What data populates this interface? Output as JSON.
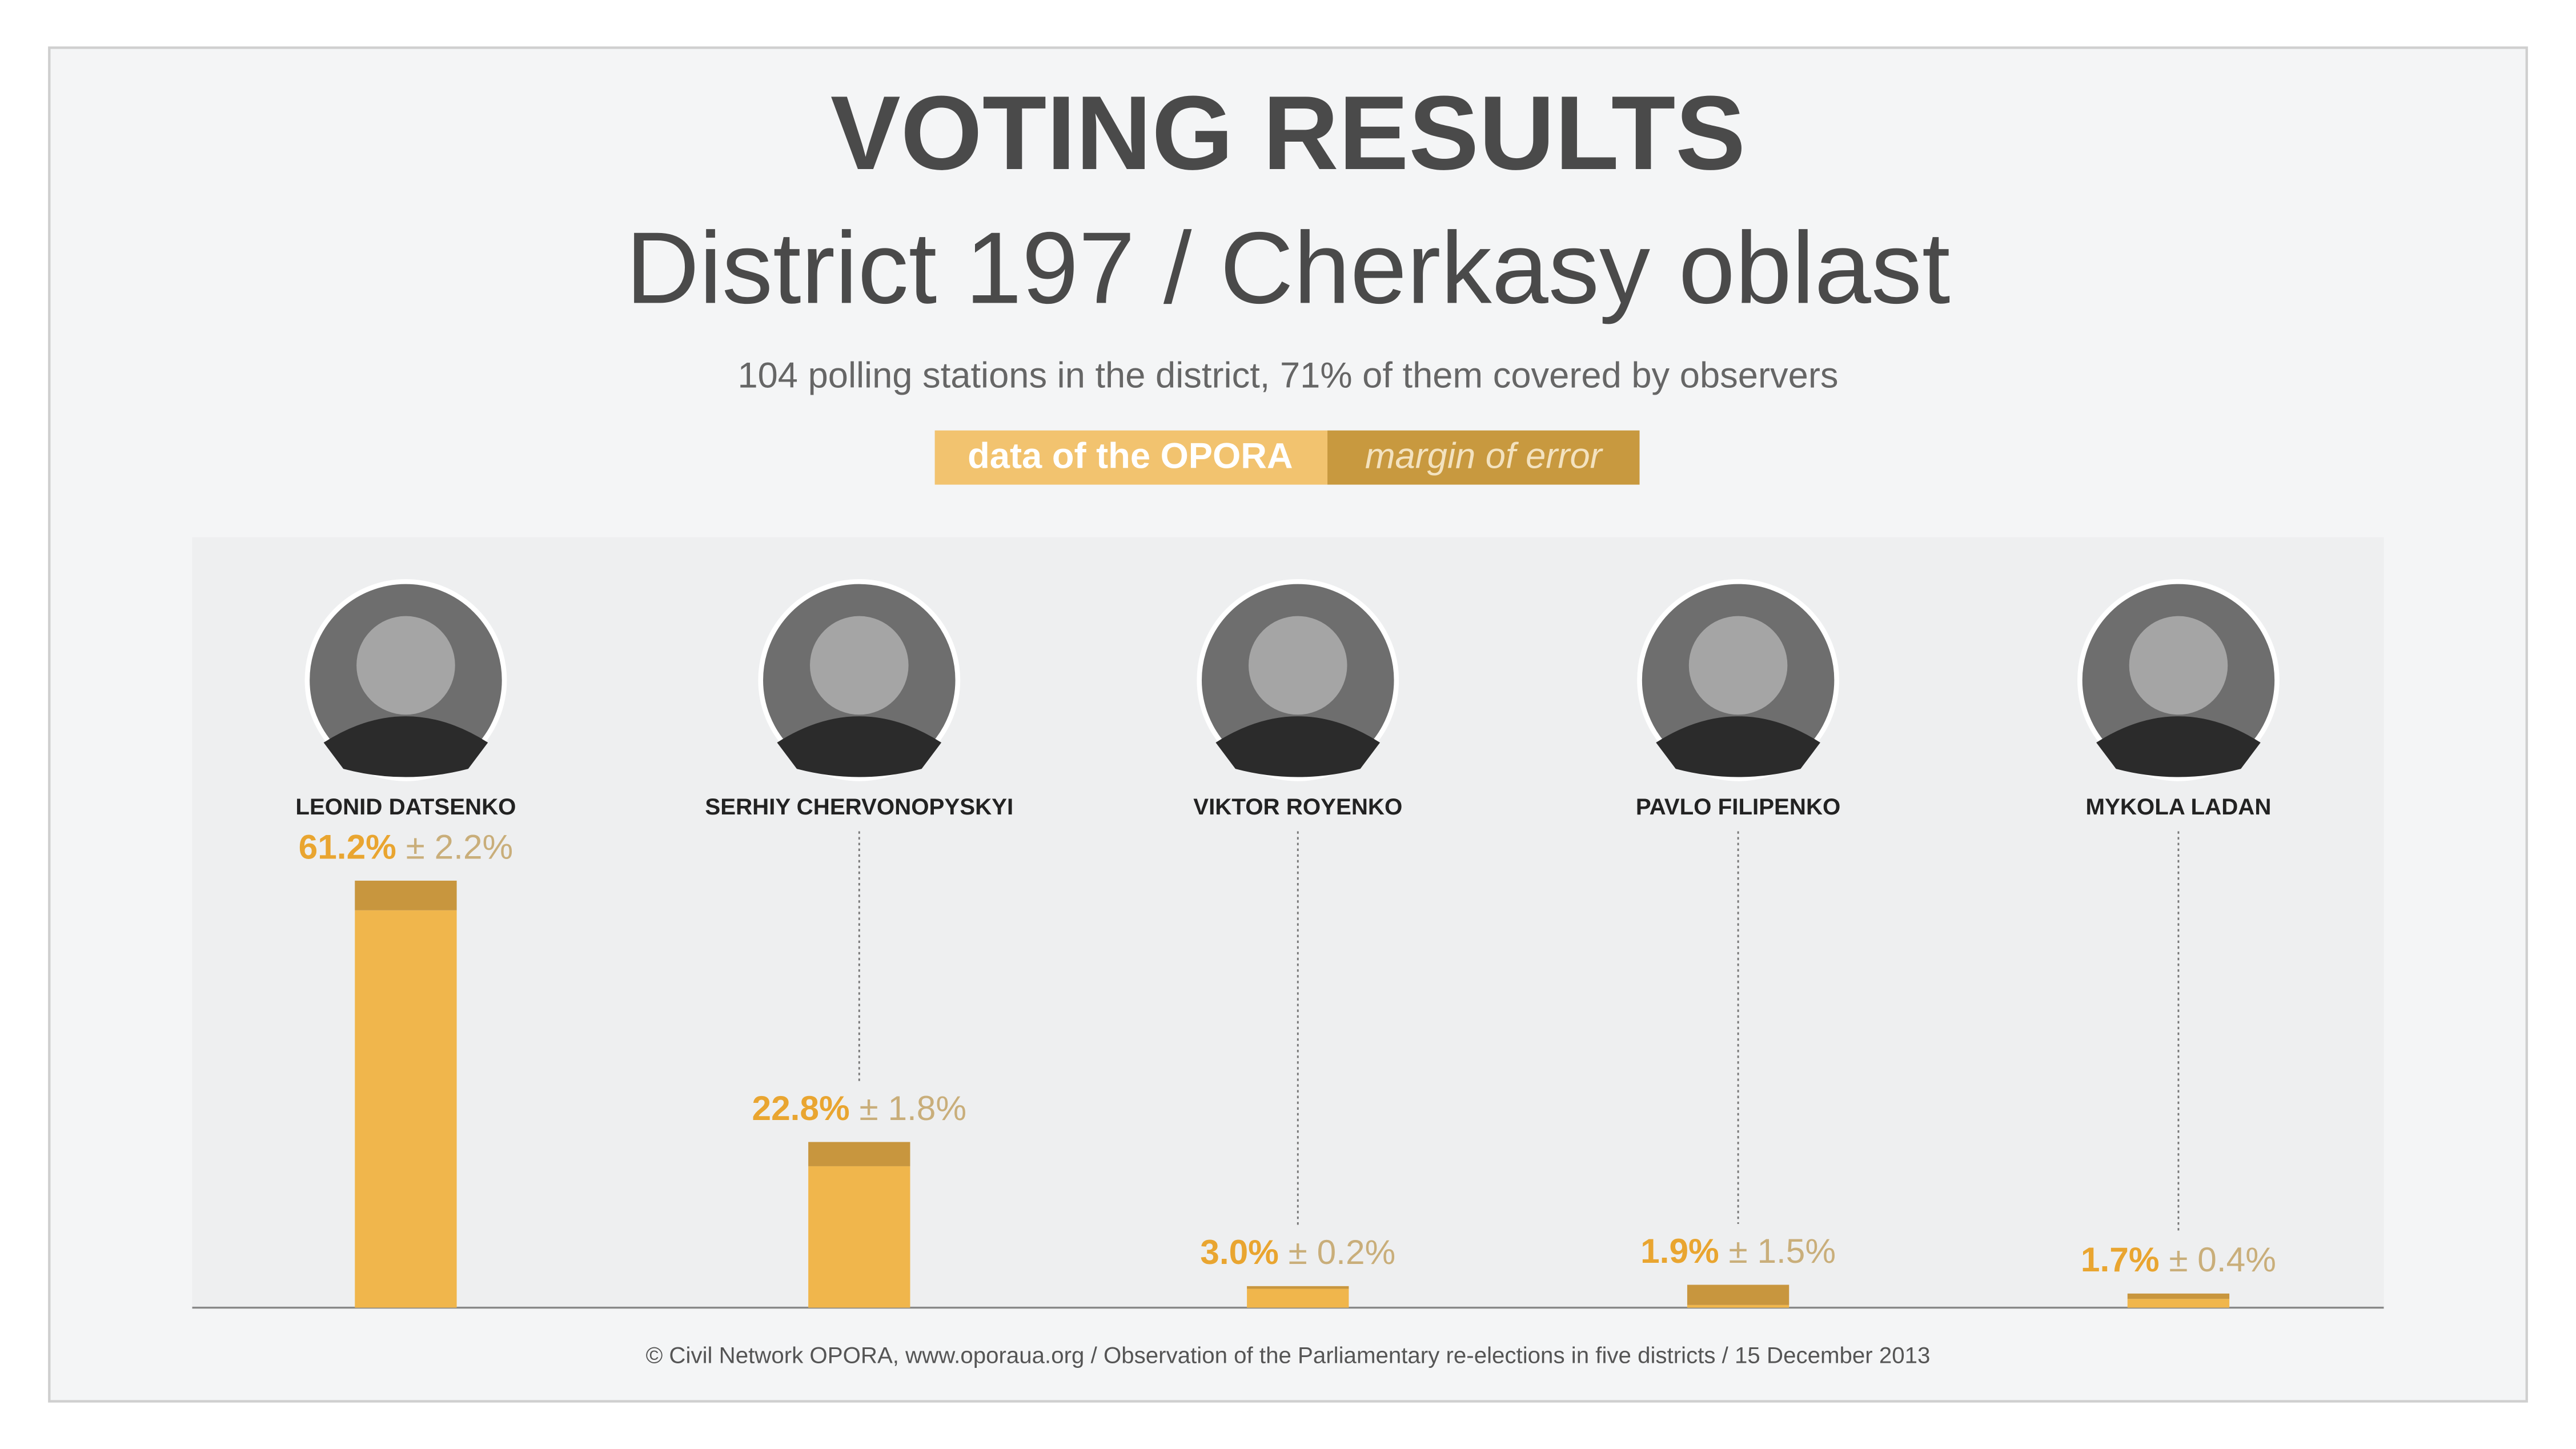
{
  "chart_data": {
    "type": "bar",
    "title": "VOTING RESULTS",
    "subtitle": "District 197 / Cherkasy oblast",
    "description": "104 polling stations in the district, 71% of them covered by observers",
    "legend": [
      "data of the OPORA",
      "margin of error"
    ],
    "categories": [
      "LEONID DATSENKO",
      "SERHIY CHERVONOPYSKYI",
      "VIKTOR ROYENKO",
      "PAVLO FILIPENKO",
      "MYKOLA LADAN"
    ],
    "values": [
      61.2,
      22.8,
      3.0,
      1.9,
      1.7
    ],
    "value_labels": [
      "61.2%",
      "22.8%",
      "3.0%",
      "1.9%",
      "1.7%"
    ],
    "errors": [
      2.2,
      1.8,
      0.2,
      1.5,
      0.4
    ],
    "error_labels": [
      "± 2.2%",
      "± 1.8%",
      "± 0.2%",
      "± 1.5%",
      "± 0.4%"
    ],
    "color": "#f0b64c",
    "error_color": "#c8963e",
    "footer": "© Civil Network OPORA, www.oporaua.org / Observation of the Parliamentary re-elections  in five districts / 15 December 2013"
  }
}
